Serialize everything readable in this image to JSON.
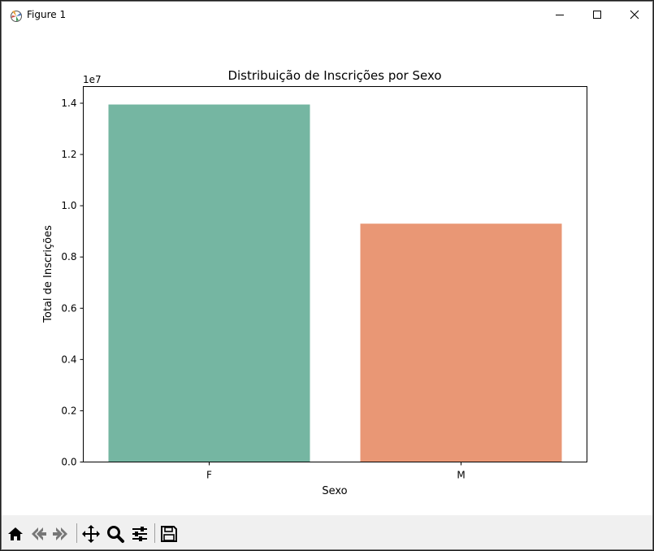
{
  "window": {
    "title": "Figure 1",
    "controls": [
      "minimize-icon",
      "maximize-icon",
      "close-icon"
    ]
  },
  "toolbar": {
    "tools": [
      "home-icon",
      "back-arrow-icon",
      "forward-arrow-icon",
      "pan-icon",
      "zoom-icon",
      "configure-subplots-icon",
      "save-icon"
    ]
  },
  "chart_data": {
    "type": "bar",
    "title": "Distribuição de Inscrições por Sexo",
    "xlabel": "Sexo",
    "ylabel": "Total de Inscrições",
    "y_offset_label": "1e7",
    "categories": [
      "F",
      "M"
    ],
    "values": [
      13950000,
      9300000
    ],
    "colors": [
      "#75b6a2",
      "#e99775"
    ],
    "ylim": [
      0,
      14650000
    ],
    "yticks": [
      0,
      2000000,
      4000000,
      6000000,
      8000000,
      10000000,
      12000000,
      14000000
    ],
    "ytick_labels": [
      "0.0",
      "0.2",
      "0.4",
      "0.6",
      "0.8",
      "1.0",
      "1.2",
      "1.4"
    ],
    "grid": false,
    "legend": "none"
  }
}
